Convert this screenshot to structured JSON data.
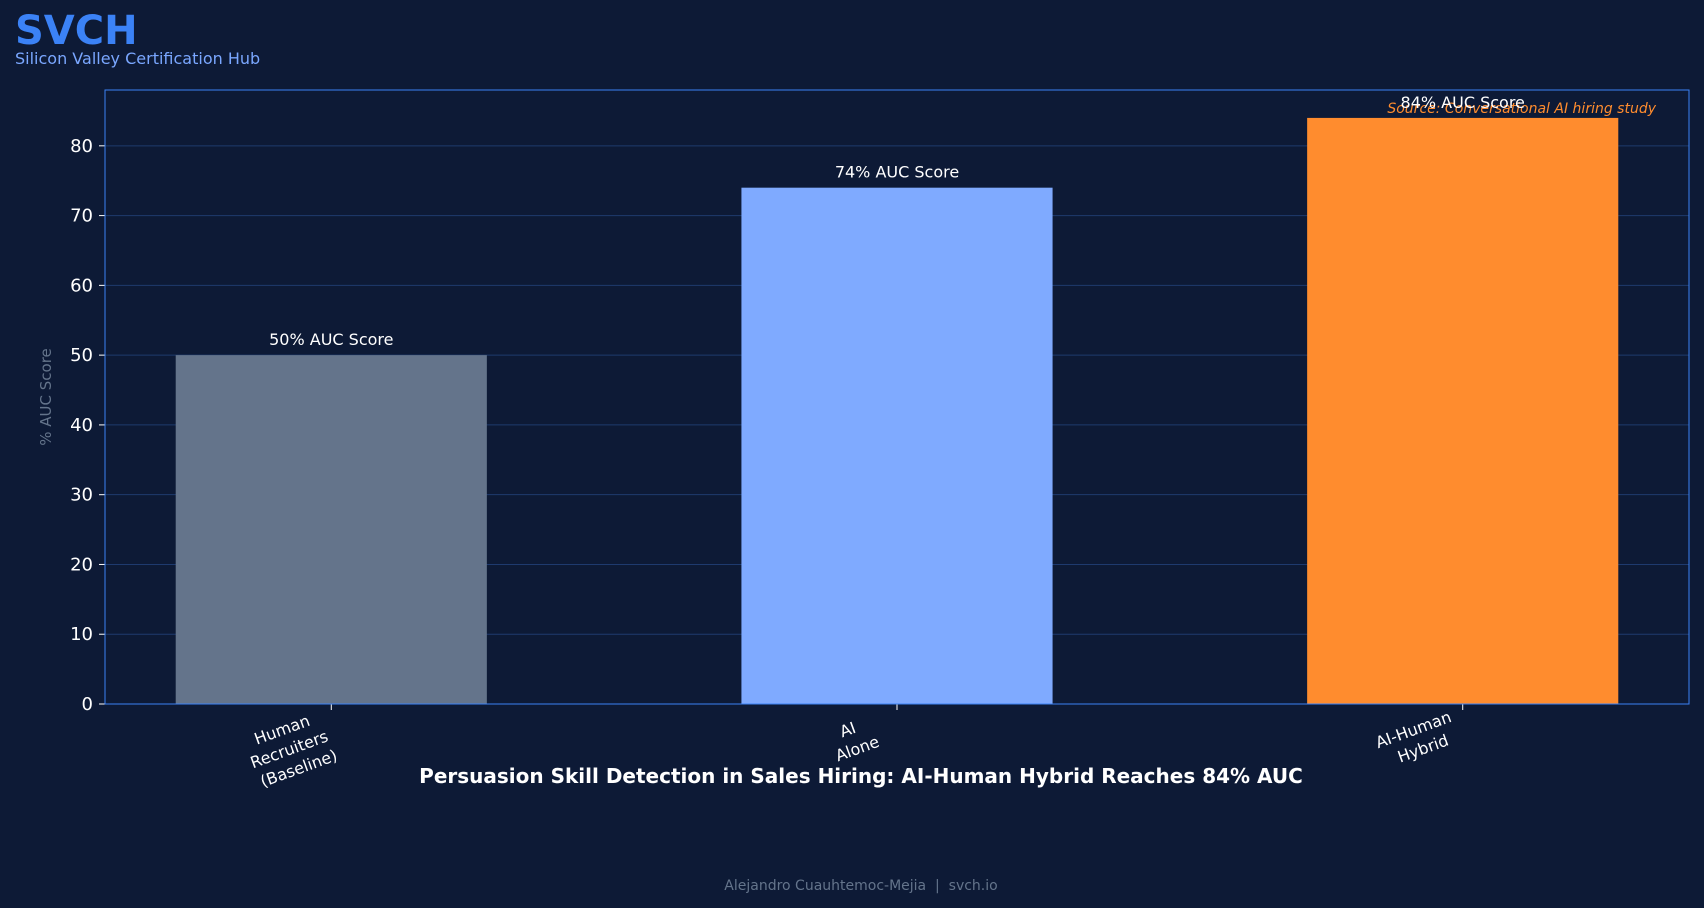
{
  "brand": {
    "name": "SVCH",
    "tagline": "Silicon Valley Certification Hub"
  },
  "chart_data": {
    "type": "bar",
    "title": "Persuasion Skill Detection in Sales Hiring: AI-Human Hybrid Reaches 84% AUC",
    "y_label": "% AUC Score",
    "annotation": "Source: Conversational AI hiring study",
    "categories": [
      "Human Recruiters (Baseline)",
      "AI Alone",
      "AI-Human Hybrid"
    ],
    "values": [
      50,
      74,
      84
    ],
    "value_labels": [
      "50% AUC Score",
      "74% AUC Score",
      "84% AUC Score"
    ],
    "colors": [
      "#64748b",
      "#7faaff",
      "#ff8c2e"
    ],
    "ylim": [
      0,
      88
    ],
    "yticks": [
      0,
      10,
      20,
      30,
      40,
      50,
      60,
      70,
      80
    ],
    "grid": true
  },
  "footer": "Alejandro Cuauhtemoc-Mejia  |  svch.io"
}
